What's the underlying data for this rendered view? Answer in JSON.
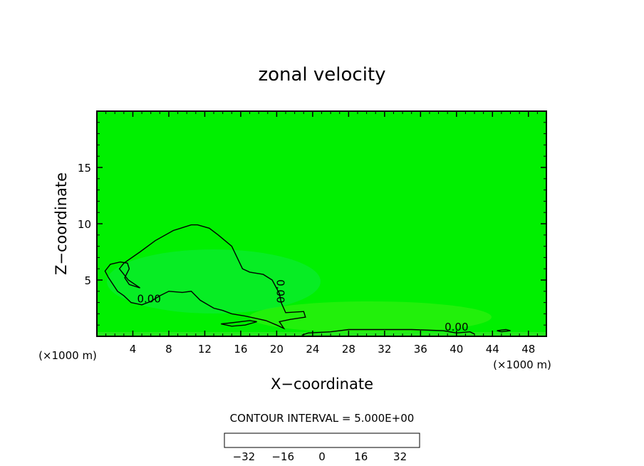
{
  "chart_data": {
    "type": "heatmap",
    "title": "zonal velocity",
    "xlabel": "X−coordinate",
    "ylabel": "Z−coordinate",
    "x_unit_left": "(×1000 m)",
    "x_unit_right": "(×1000 m)",
    "xlim": [
      0,
      50
    ],
    "ylim": [
      0,
      20
    ],
    "x_ticks": [
      4,
      8,
      12,
      16,
      20,
      24,
      28,
      32,
      36,
      40,
      44,
      48
    ],
    "y_ticks": [
      5,
      10,
      15
    ],
    "grid": false,
    "field_color": "#00f000",
    "contour_interval_text": "CONTOUR INTERVAL = 5.000E+00",
    "contours": [
      {
        "label": "0.00",
        "label_at": [
          5.8,
          3.0
        ],
        "points": [
          [
            4.8,
            4.3
          ],
          [
            3.5,
            5.0
          ],
          [
            2.5,
            6.0
          ],
          [
            3.0,
            6.5
          ],
          [
            4.8,
            7.5
          ],
          [
            6.5,
            8.5
          ],
          [
            8.5,
            9.4
          ],
          [
            10.5,
            9.9
          ],
          [
            11.2,
            9.9
          ],
          [
            12.5,
            9.6
          ],
          [
            13.5,
            9.0
          ],
          [
            15.0,
            8.0
          ],
          [
            16.2,
            6.0
          ],
          [
            17.0,
            5.7
          ],
          [
            18.5,
            5.5
          ],
          [
            19.5,
            5.0
          ],
          [
            20.3,
            3.8
          ],
          [
            20.5,
            3.0
          ],
          [
            21.0,
            2.1
          ],
          [
            23.0,
            2.2
          ],
          [
            23.2,
            1.7
          ],
          [
            21.5,
            1.5
          ],
          [
            20.3,
            1.3
          ],
          [
            20.8,
            0.7
          ],
          [
            20.0,
            1.0
          ],
          [
            18.8,
            1.4
          ],
          [
            16.5,
            1.8
          ],
          [
            15.0,
            2.0
          ],
          [
            14.0,
            2.3
          ],
          [
            13.0,
            2.5
          ],
          [
            11.5,
            3.2
          ],
          [
            10.5,
            4.0
          ],
          [
            9.5,
            3.9
          ],
          [
            8.0,
            4.0
          ],
          [
            7.0,
            3.6
          ],
          [
            6.0,
            3.1
          ],
          [
            5.0,
            2.8
          ],
          [
            3.8,
            3.0
          ],
          [
            3.0,
            3.6
          ],
          [
            2.3,
            4.0
          ],
          [
            1.3,
            5.2
          ],
          [
            0.9,
            5.8
          ],
          [
            1.5,
            6.4
          ],
          [
            2.6,
            6.6
          ],
          [
            3.4,
            6.5
          ],
          [
            3.6,
            6.0
          ],
          [
            3.1,
            5.2
          ],
          [
            3.6,
            4.6
          ],
          [
            4.8,
            4.3
          ]
        ]
      },
      {
        "label": "0.00",
        "label_at": [
          20.0,
          4.0
        ],
        "label_rotated": true,
        "points": []
      },
      {
        "label": "",
        "label_at": [
          0,
          0
        ],
        "points": [
          [
            13.8,
            1.1
          ],
          [
            15.0,
            1.2
          ],
          [
            17.0,
            1.4
          ],
          [
            17.8,
            1.3
          ],
          [
            16.5,
            1.0
          ],
          [
            15.0,
            0.9
          ],
          [
            13.8,
            1.1
          ]
        ]
      },
      {
        "label": "0.00",
        "label_at": [
          40.0,
          0.5
        ],
        "points": [
          [
            22.8,
            0.1
          ],
          [
            23.5,
            0.3
          ],
          [
            26.0,
            0.4
          ],
          [
            28.0,
            0.6
          ],
          [
            30.0,
            0.6
          ],
          [
            32.0,
            0.6
          ],
          [
            35.0,
            0.6
          ],
          [
            38.5,
            0.5
          ],
          [
            40.0,
            0.3
          ],
          [
            41.5,
            0.4
          ],
          [
            42.0,
            0.2
          ]
        ]
      },
      {
        "label": "",
        "label_at": [
          0,
          0
        ],
        "points": [
          [
            44.5,
            0.5
          ],
          [
            45.5,
            0.6
          ],
          [
            46.0,
            0.5
          ],
          [
            45.0,
            0.4
          ],
          [
            44.5,
            0.5
          ]
        ]
      }
    ],
    "colorbar": {
      "ticks": [
        "−32",
        "−16",
        "0",
        "16",
        "32"
      ],
      "tick_values": [
        -32,
        -16,
        0,
        16,
        32
      ],
      "range": [
        -40,
        40
      ],
      "colors": [
        "#1a0a3a",
        "#20106e",
        "#1818a0",
        "#1030d0",
        "#1060f0",
        "#1090f0",
        "#10c0f0",
        "#10e0d0",
        "#10f0a0",
        "#10f070",
        "#30f040",
        "#70f020",
        "#a0f020",
        "#d0f020",
        "#f0e020",
        "#f0b020",
        "#f08020",
        "#f04020",
        "#e01010",
        "#ffb0a0"
      ]
    }
  }
}
